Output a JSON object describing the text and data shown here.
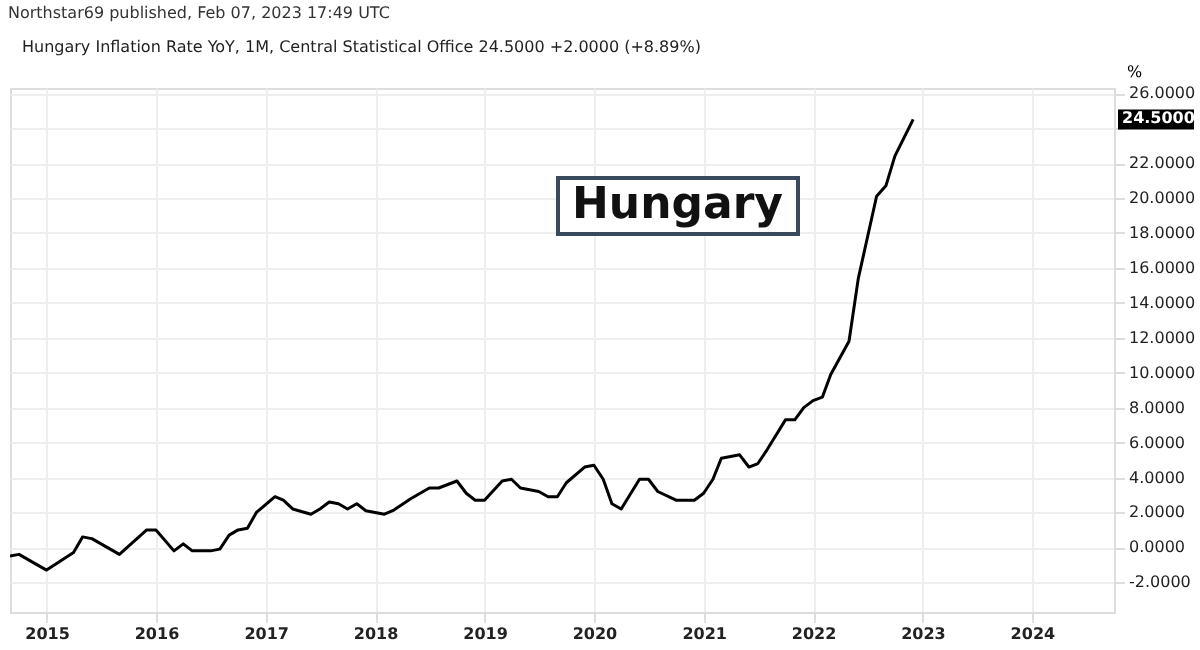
{
  "chart_data": {
    "type": "line",
    "subtitle": "Northstar69 published, Feb 07, 2023 17:49 UTC",
    "title": "Hungary Inflation Rate YoY, 1M, Central Statistical Office  24.5000  +2.0000 (+8.89%)",
    "ylabel": "%",
    "annotations": [
      "Hungary",
      "24.5000"
    ],
    "x": [
      "2014-09",
      "2014-10",
      "2014-12",
      "2015-01",
      "2015-04",
      "2015-05",
      "2015-06",
      "2015-09",
      "2015-12",
      "2016-01",
      "2016-03",
      "2016-04",
      "2016-05",
      "2016-07",
      "2016-08",
      "2016-09",
      "2016-10",
      "2016-11",
      "2016-12",
      "2017-02",
      "2017-03",
      "2017-04",
      "2017-06",
      "2017-07",
      "2017-08",
      "2017-09",
      "2017-10",
      "2017-11",
      "2017-12",
      "2018-01",
      "2018-02",
      "2018-03",
      "2018-05",
      "2018-07",
      "2018-08",
      "2018-10",
      "2018-11",
      "2018-12",
      "2019-01",
      "2019-03",
      "2019-04",
      "2019-05",
      "2019-07",
      "2019-08",
      "2019-09",
      "2019-10",
      "2019-12",
      "2020-01",
      "2020-02",
      "2020-03",
      "2020-04",
      "2020-06",
      "2020-07",
      "2020-08",
      "2020-10",
      "2020-12",
      "2021-01",
      "2021-02",
      "2021-03",
      "2021-04",
      "2021-05",
      "2021-06",
      "2021-07",
      "2021-08",
      "2021-10",
      "2021-11",
      "2021-12",
      "2022-01",
      "2022-02",
      "2022-03",
      "2022-05",
      "2022-06",
      "2022-08",
      "2022-09",
      "2022-10",
      "2022-12"
    ],
    "series": [
      {
        "color": "#000000",
        "values": [
          -0.5,
          -0.4,
          -1.0,
          -1.3,
          -0.3,
          0.6,
          0.5,
          -0.4,
          1.0,
          1.0,
          -0.2,
          0.2,
          -0.2,
          -0.2,
          -0.1,
          0.7,
          1.0,
          1.1,
          2.0,
          2.9,
          2.7,
          2.2,
          1.9,
          2.2,
          2.6,
          2.5,
          2.2,
          2.5,
          2.1,
          2.0,
          1.9,
          2.1,
          2.8,
          3.4,
          3.4,
          3.8,
          3.1,
          2.7,
          2.7,
          3.8,
          3.9,
          3.4,
          3.2,
          2.9,
          2.9,
          3.7,
          4.6,
          4.7,
          3.9,
          2.5,
          2.2,
          3.9,
          3.9,
          3.2,
          2.7,
          2.7,
          3.1,
          3.9,
          5.1,
          5.2,
          5.3,
          4.6,
          4.8,
          5.6,
          7.3,
          7.3,
          8.0,
          8.4,
          8.6,
          9.9,
          11.8,
          15.4,
          20.1,
          20.7,
          22.4,
          24.5
        ]
      }
    ],
    "xlim": [
      "2014-09",
      "2024-10"
    ],
    "xticks": [
      "2015",
      "2016",
      "2017",
      "2018",
      "2019",
      "2020",
      "2021",
      "2022",
      "2023",
      "2024"
    ],
    "ylim": [
      -3.7,
      26.3
    ],
    "yticks": [
      {
        "value": -2,
        "label": "-2.0000"
      },
      {
        "value": 0,
        "label": "0.0000"
      },
      {
        "value": 2,
        "label": "2.0000"
      },
      {
        "value": 4,
        "label": "4.0000"
      },
      {
        "value": 6,
        "label": "6.0000"
      },
      {
        "value": 8,
        "label": "8.0000"
      },
      {
        "value": 10,
        "label": "10.0000"
      },
      {
        "value": 12,
        "label": "12.0000"
      },
      {
        "value": 14,
        "label": "14.0000"
      },
      {
        "value": 16,
        "label": "16.0000"
      },
      {
        "value": 18,
        "label": "18.0000"
      },
      {
        "value": 20,
        "label": "20.0000"
      },
      {
        "value": 22,
        "label": "22.0000"
      },
      {
        "value": 24,
        "label": null
      },
      {
        "value": 26,
        "label": "26.0000"
      }
    ],
    "grid": true,
    "line_style": "solid"
  }
}
